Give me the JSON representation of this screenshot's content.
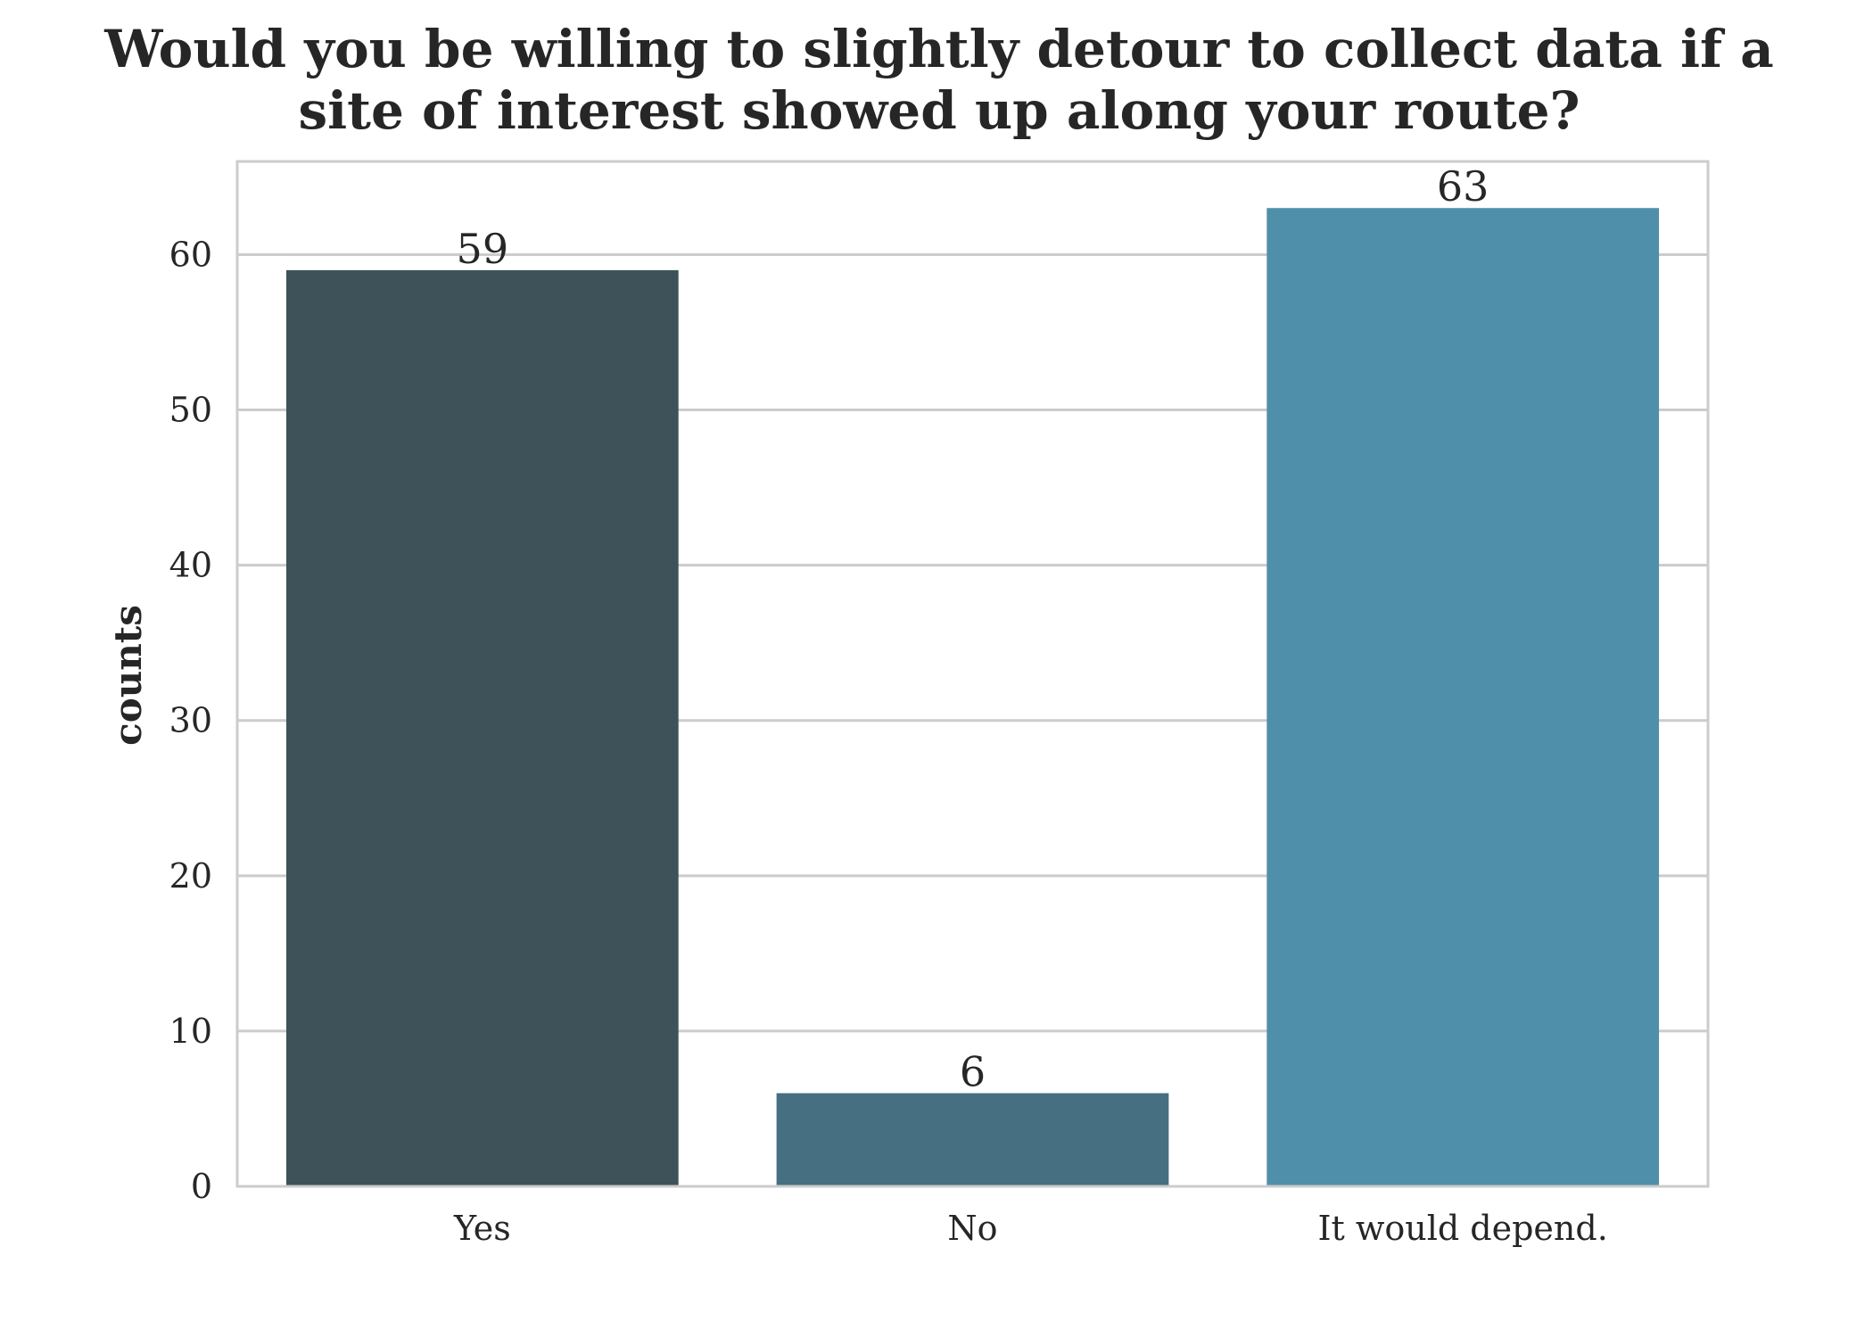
{
  "chart_data": {
    "type": "bar",
    "title_lines": [
      "Would you be willing to slightly detour to collect data if a",
      "site of interest showed up along your route?"
    ],
    "categories": [
      "Yes",
      "No",
      "It would depend."
    ],
    "values": [
      59,
      6,
      63
    ],
    "data_labels": [
      "59",
      "6",
      "63"
    ],
    "bar_colors": [
      "#3e525a",
      "#466f82",
      "#508fa9"
    ],
    "xlabel": "",
    "ylabel": "counts",
    "ylim": [
      0,
      66
    ],
    "yticks": [
      0,
      10,
      20,
      30,
      40,
      50,
      60
    ],
    "ytick_labels": [
      "0",
      "10",
      "20",
      "30",
      "40",
      "50",
      "60"
    ],
    "grid": "horizontal",
    "grid_color": "#cccccc",
    "text_color": "#262626",
    "background": "#ffffff"
  }
}
